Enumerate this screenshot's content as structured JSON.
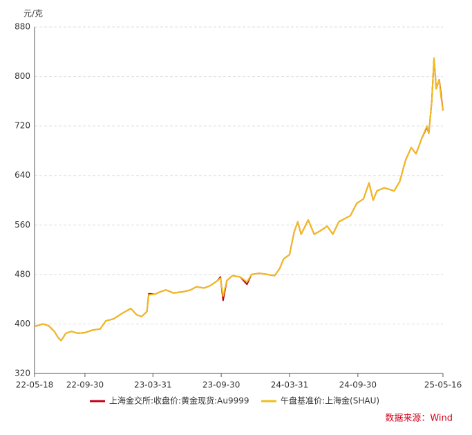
{
  "chart_data": {
    "type": "line",
    "y_label": "元/克",
    "source": "数据来源：Wind",
    "x": [
      "22-05-18",
      "22-06-10",
      "22-06-25",
      "22-07-10",
      "22-07-20",
      "22-07-28",
      "22-08-10",
      "22-08-25",
      "22-09-10",
      "22-09-30",
      "22-10-20",
      "22-11-10",
      "22-11-25",
      "22-12-15",
      "23-01-10",
      "23-01-31",
      "23-02-15",
      "23-03-01",
      "23-03-15",
      "23-03-20",
      "23-04-05",
      "23-04-20",
      "23-05-05",
      "23-05-25",
      "23-06-20",
      "23-07-10",
      "23-07-25",
      "23-08-15",
      "23-09-01",
      "23-09-20",
      "23-09-28",
      "23-10-05",
      "23-10-15",
      "23-10-30",
      "23-11-20",
      "23-12-08",
      "23-12-20",
      "24-01-10",
      "24-02-01",
      "24-02-20",
      "24-03-05",
      "24-03-15",
      "24-03-31",
      "24-04-12",
      "24-04-22",
      "24-05-01",
      "24-05-20",
      "24-06-05",
      "24-06-20",
      "24-07-10",
      "24-07-25",
      "24-08-10",
      "24-08-25",
      "24-09-10",
      "24-09-27",
      "24-10-15",
      "24-10-30",
      "24-11-10",
      "24-11-20",
      "24-12-10",
      "25-01-05",
      "25-01-20",
      "25-02-05",
      "25-02-20",
      "25-03-05",
      "25-03-20",
      "25-04-03",
      "25-04-08",
      "25-04-16",
      "25-04-22",
      "25-04-28",
      "25-05-06",
      "25-05-10",
      "25-05-16"
    ],
    "series": [
      {
        "name": "上海金交所:收盘价:黄金现货:Au9999",
        "color": "#c00018",
        "values": [
          396,
          400,
          397,
          388,
          378,
          373,
          385,
          388,
          385,
          386,
          390,
          392,
          405,
          408,
          418,
          425,
          415,
          412,
          420,
          449,
          448,
          452,
          455,
          450,
          452,
          455,
          460,
          458,
          462,
          470,
          476,
          438,
          470,
          478,
          476,
          464,
          480,
          482,
          480,
          478,
          490,
          505,
          512,
          548,
          565,
          545,
          568,
          545,
          550,
          558,
          545,
          565,
          570,
          575,
          595,
          602,
          628,
          600,
          615,
          620,
          615,
          630,
          665,
          685,
          675,
          700,
          718,
          708,
          760,
          829,
          780,
          795,
          775,
          745
        ]
      },
      {
        "name": "午盘基准价:上海金(SHAU)",
        "color": "#f2bd1c",
        "values": [
          396,
          400,
          397,
          388,
          378,
          373,
          385,
          388,
          385,
          386,
          390,
          392,
          405,
          408,
          418,
          425,
          415,
          412,
          420,
          447,
          448,
          452,
          455,
          450,
          452,
          455,
          460,
          458,
          462,
          470,
          474,
          445,
          470,
          478,
          476,
          468,
          480,
          482,
          480,
          478,
          490,
          505,
          512,
          548,
          565,
          545,
          568,
          545,
          550,
          558,
          545,
          565,
          570,
          575,
          595,
          602,
          628,
          600,
          615,
          620,
          615,
          630,
          665,
          685,
          675,
          700,
          720,
          708,
          760,
          830,
          780,
          795,
          770,
          745
        ]
      }
    ],
    "xlim": [
      "22-05-18",
      "25-05-16"
    ],
    "xticks": [
      "22-05-18",
      "22-09-30",
      "23-03-31",
      "23-09-30",
      "24-03-31",
      "24-09-30",
      "25-05-16"
    ],
    "ylim": [
      320,
      880
    ],
    "yticks": [
      320,
      400,
      480,
      560,
      640,
      720,
      800,
      880
    ],
    "grid": true
  }
}
